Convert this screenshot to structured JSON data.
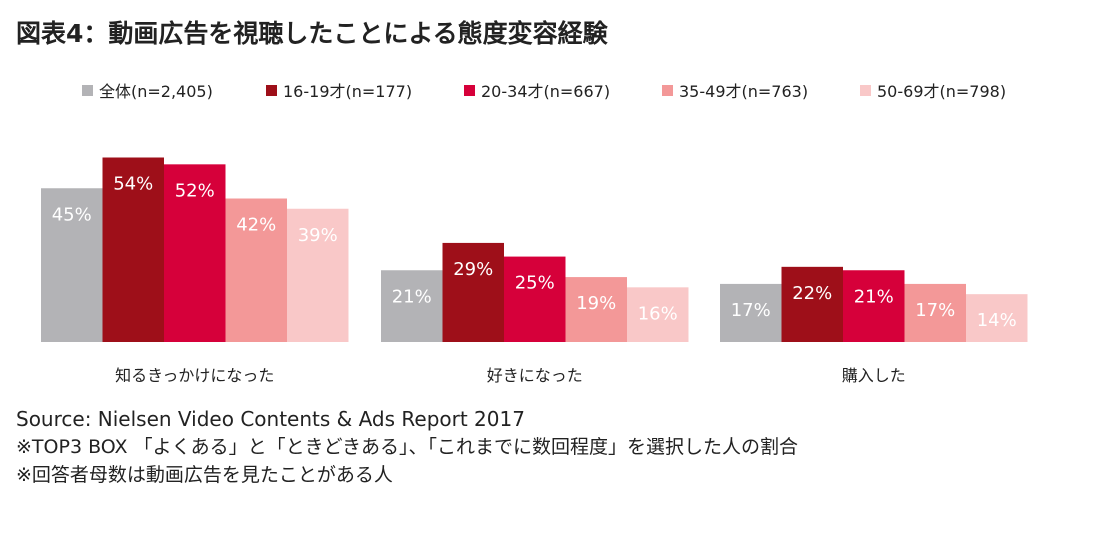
{
  "title": "図表4：動画広告を視聴したことによる態度変容経験",
  "chart_data": {
    "type": "bar",
    "categories": [
      "知るきっかけになった",
      "好きになった",
      "購入した"
    ],
    "series": [
      {
        "name": "全体(n=2,405)",
        "color": "#b3b3b6",
        "values": [
          45,
          21,
          17
        ]
      },
      {
        "name": "16-19才(n=177)",
        "color": "#9e0f19",
        "values": [
          54,
          29,
          22
        ]
      },
      {
        "name": "20-34才(n=667)",
        "color": "#d6003a",
        "values": [
          52,
          25,
          21
        ]
      },
      {
        "name": "35-49才(n=763)",
        "color": "#f39898",
        "values": [
          42,
          19,
          17
        ]
      },
      {
        "name": "50-69才(n=798)",
        "color": "#f9c8c8",
        "values": [
          39,
          16,
          14
        ]
      }
    ],
    "value_suffix": "%",
    "ylim": [
      0,
      60
    ],
    "legend_position": "top",
    "grid": false
  },
  "notes": {
    "source": "Source: Nielsen Video Contents & Ads Report 2017",
    "note1": "※TOP3 BOX 「よくある」と「ときどきある」、「これまでに数回程度」を選択した人の割合",
    "note2": "※回答者母数は動画広告を見たことがある人"
  }
}
